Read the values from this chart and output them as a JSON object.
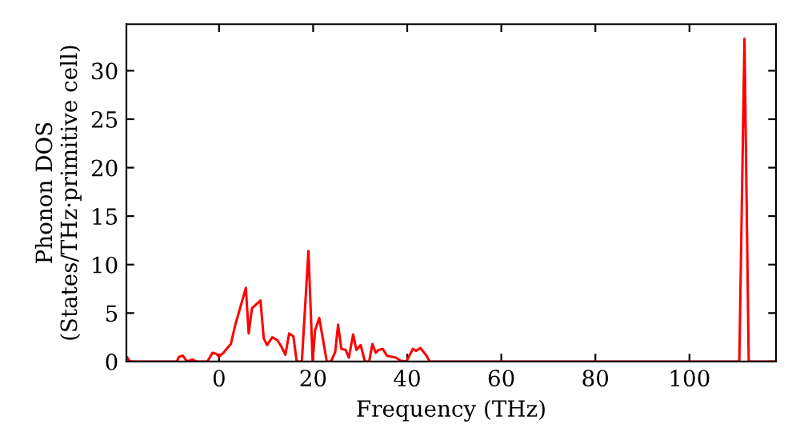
{
  "chart_data": {
    "type": "line",
    "xlabel": "Frequency (THz)",
    "ylabel": "Phonon DOS\n(States/THz·primitive cell)",
    "xlim": [
      -19.7,
      118.4
    ],
    "ylim": [
      0,
      34.8
    ],
    "xticks": [
      0,
      20,
      40,
      60,
      80,
      100
    ],
    "yticks": [
      0,
      5,
      10,
      15,
      20,
      25,
      30
    ],
    "grid": false,
    "series": [
      {
        "color": "#ff0000",
        "x": [
          -19.5,
          -19,
          -9,
          -8.5,
          -7.7,
          -6.8,
          -5.7,
          -4.8,
          -2.5,
          -1.4,
          -0.6,
          0,
          1.1,
          2.5,
          3.4,
          5.7,
          6.3,
          7,
          8.8,
          9.5,
          10.2,
          11.3,
          12.4,
          13.3,
          14.1,
          14.9,
          15.8,
          16.5,
          17.6,
          19,
          19.9,
          20.4,
          21.3,
          22.9,
          23.8,
          24.7,
          25.3,
          26,
          26.9,
          27.6,
          28.5,
          29.2,
          30.1,
          31,
          31.9,
          32.6,
          33.3,
          33.9,
          34.8,
          35.7,
          37.6,
          38.5,
          39.8,
          41.2,
          41.9,
          42.8,
          44.1,
          44.8,
          110.6,
          111.7,
          112.6,
          118.2
        ],
        "values": [
          0.4,
          0,
          0,
          0.5,
          0.6,
          0,
          0.2,
          0,
          0,
          0.9,
          0.8,
          0.5,
          1,
          1.8,
          3.7,
          7.6,
          2.9,
          5.5,
          6.3,
          2.4,
          1.7,
          2.5,
          2.2,
          1.5,
          0.7,
          2.9,
          2.6,
          0,
          0,
          11.4,
          0,
          3.2,
          4.5,
          0,
          0,
          1,
          3.8,
          1.3,
          1.2,
          0.4,
          2.8,
          1.2,
          1.7,
          0,
          0,
          1.8,
          0.9,
          1.2,
          1.3,
          0.6,
          0.4,
          0.1,
          0,
          1.3,
          1.1,
          1.4,
          0.6,
          0,
          0,
          33.3,
          0,
          0
        ]
      }
    ]
  }
}
